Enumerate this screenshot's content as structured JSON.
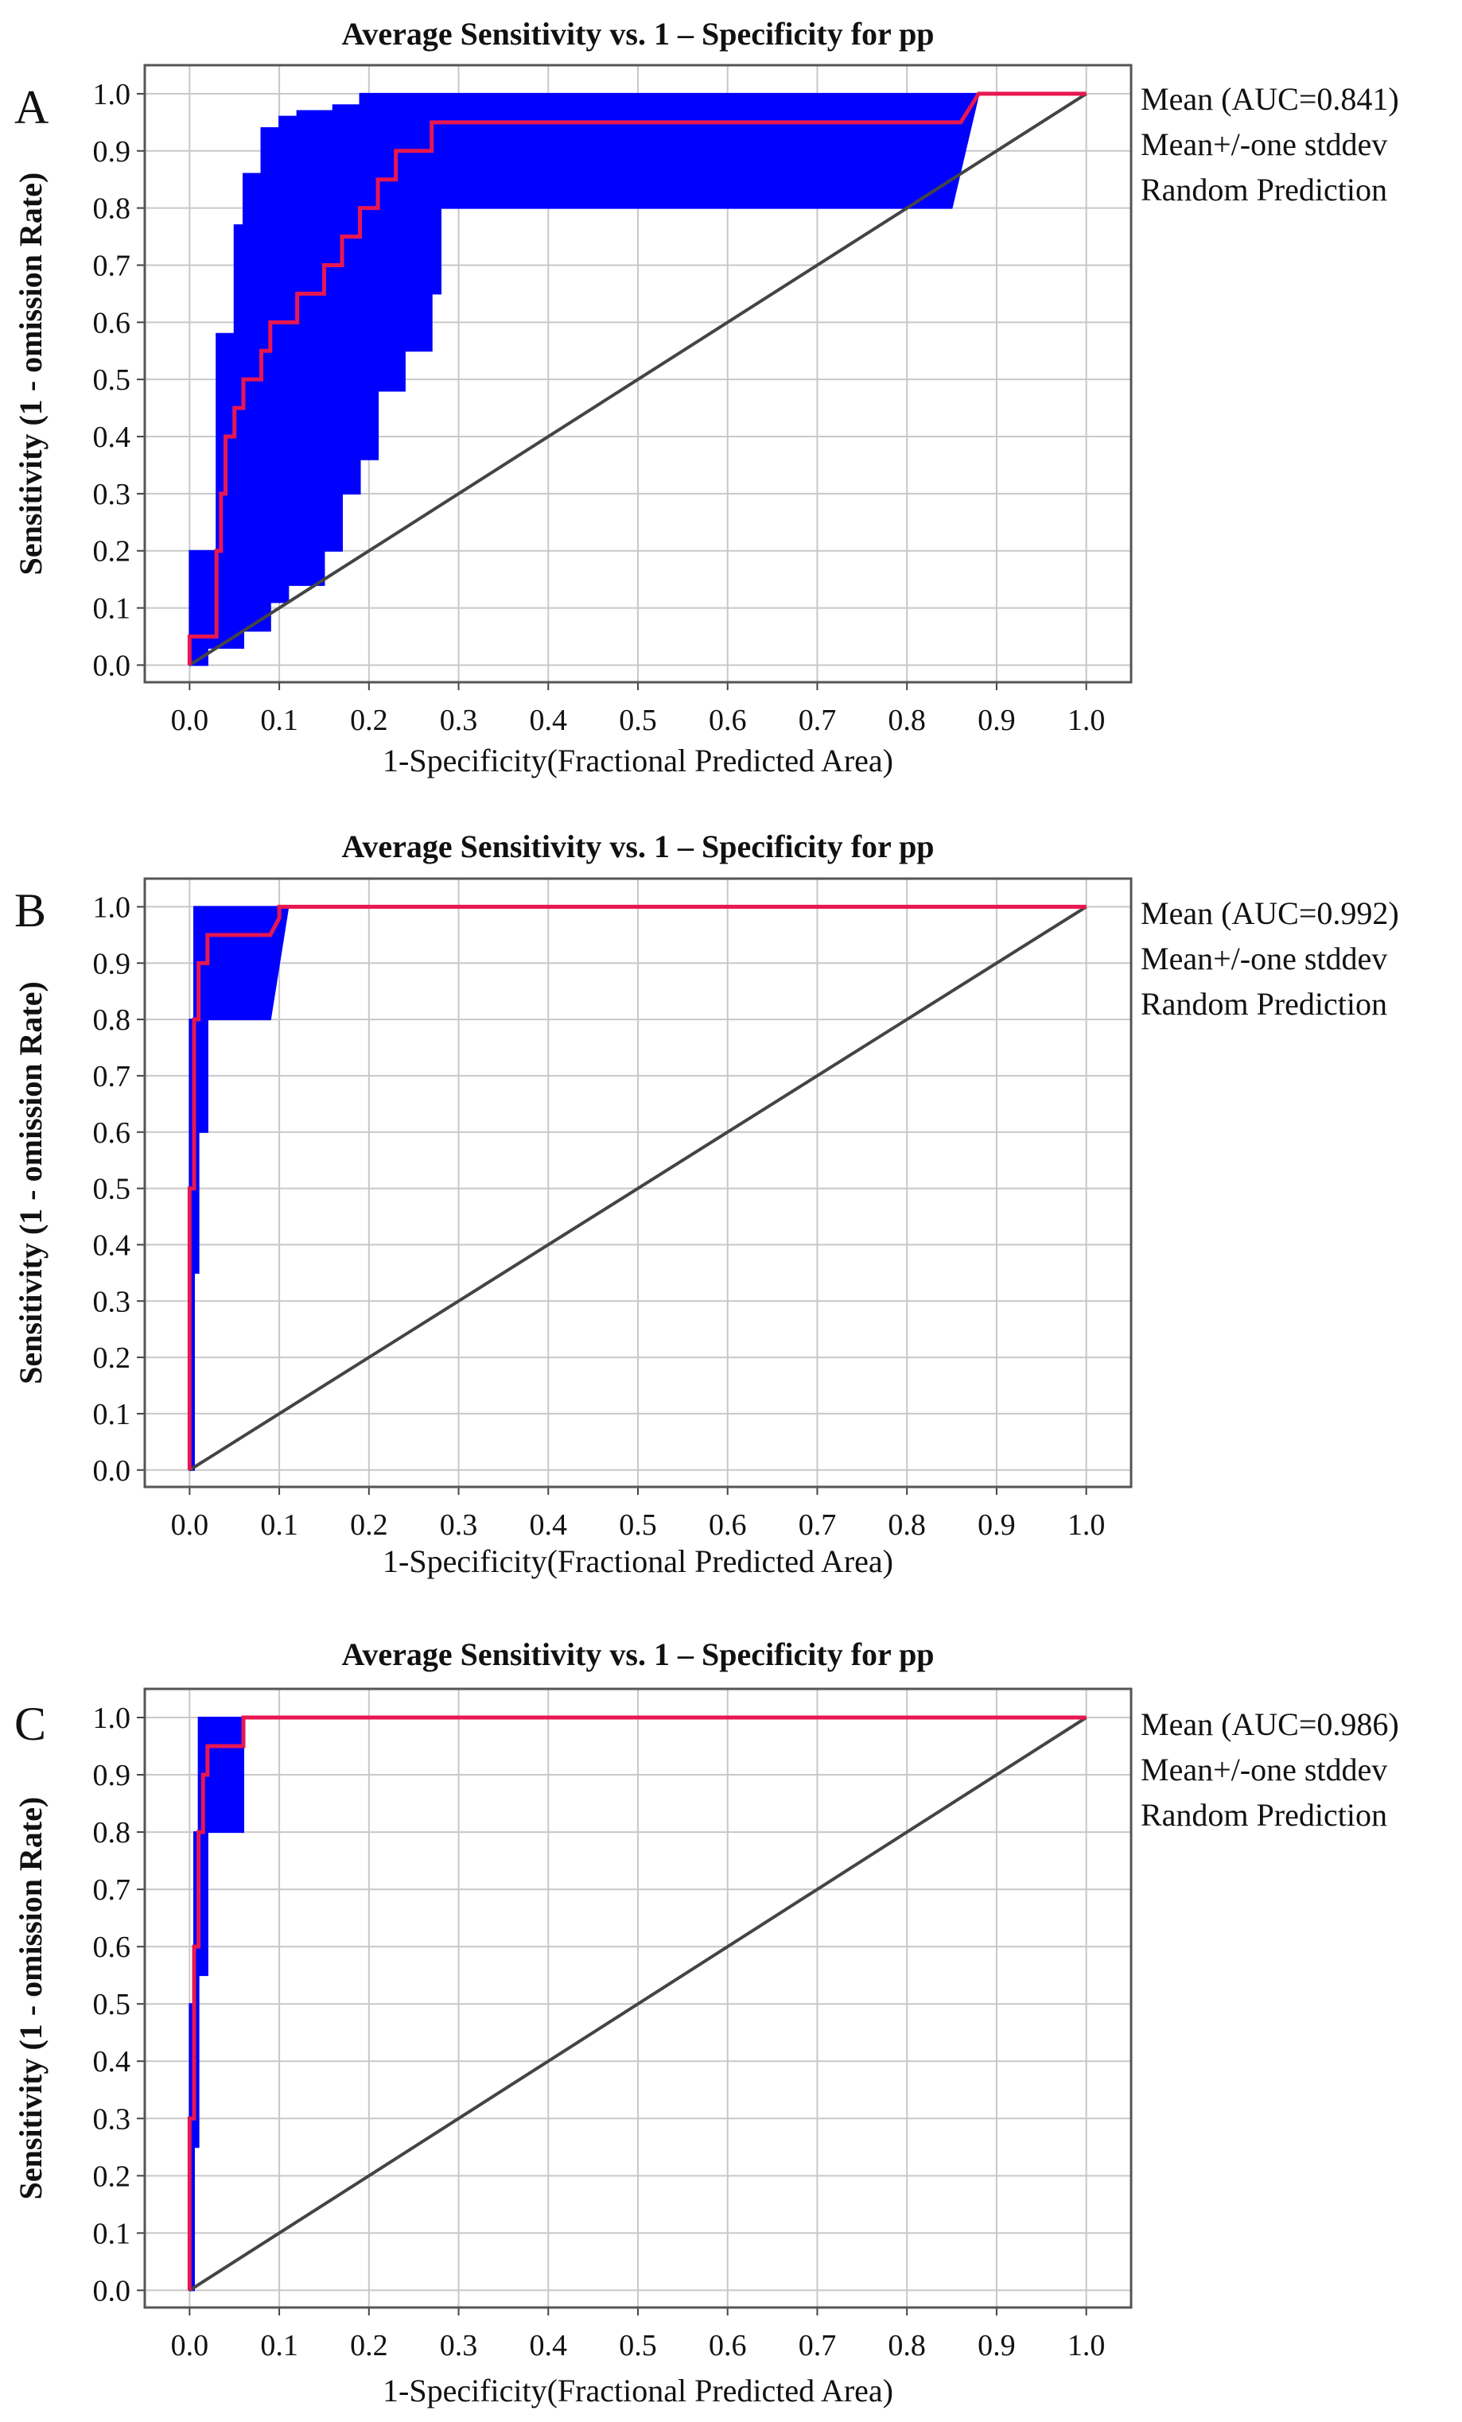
{
  "chart_data": [
    {
      "panel": "A",
      "type": "line",
      "title": "Average Sensitivity vs. 1 – Specificity for pp",
      "xlabel": "1-Specificity(Fractional Predicted Area)",
      "ylabel": "Sensitivity (1 - omission Rate)",
      "xlim": [
        -0.05,
        1.05
      ],
      "ylim": [
        -0.03,
        1.05
      ],
      "xticks": [
        0.0,
        0.1,
        0.2,
        0.3,
        0.4,
        0.5,
        0.6,
        0.7,
        0.8,
        0.9,
        1.0
      ],
      "xtick_labels": [
        "0.0",
        "0.1",
        "0.2",
        "0.3",
        "0.4",
        "0.5",
        "0.6",
        "0.7",
        "0.8",
        "0.9",
        "1.0"
      ],
      "yticks": [
        0.0,
        0.1,
        0.2,
        0.3,
        0.4,
        0.5,
        0.6,
        0.7,
        0.8,
        0.9,
        1.0
      ],
      "ytick_labels": [
        "0.0",
        "0.1",
        "0.2",
        "0.3",
        "0.4",
        "0.5",
        "0.6",
        "0.7",
        "0.8",
        "0.9",
        "1.0"
      ],
      "grid": true,
      "legend_position": "right",
      "legend": [
        "Mean (AUC=0.841)",
        "Mean+/-one stddev",
        "Random Prediction"
      ],
      "colors": {
        "mean": "#e8174f",
        "band": "#0000ff",
        "random": "#444444"
      },
      "series": [
        {
          "name": "Mean (AUC=0.841)",
          "x": [
            0.0,
            0.0,
            0.03,
            0.03,
            0.035,
            0.035,
            0.04,
            0.04,
            0.05,
            0.05,
            0.06,
            0.06,
            0.08,
            0.08,
            0.09,
            0.09,
            0.12,
            0.12,
            0.15,
            0.15,
            0.17,
            0.17,
            0.19,
            0.19,
            0.21,
            0.21,
            0.23,
            0.23,
            0.27,
            0.27,
            0.28,
            0.28,
            0.86,
            0.88,
            1.0
          ],
          "y": [
            0.0,
            0.05,
            0.05,
            0.2,
            0.2,
            0.3,
            0.3,
            0.4,
            0.4,
            0.45,
            0.45,
            0.5,
            0.5,
            0.55,
            0.55,
            0.6,
            0.6,
            0.65,
            0.65,
            0.7,
            0.7,
            0.75,
            0.75,
            0.8,
            0.8,
            0.85,
            0.85,
            0.9,
            0.9,
            0.95,
            0.95,
            0.95,
            0.95,
            1.0,
            1.0
          ]
        },
        {
          "name": "Mean+/-one stddev upper",
          "x": [
            0.0,
            0.0,
            0.03,
            0.03,
            0.05,
            0.05,
            0.06,
            0.06,
            0.08,
            0.08,
            0.1,
            0.1,
            0.12,
            0.12,
            0.16,
            0.16,
            0.19,
            0.19,
            1.0
          ],
          "y": [
            0.0,
            0.2,
            0.2,
            0.58,
            0.58,
            0.77,
            0.77,
            0.86,
            0.86,
            0.94,
            0.94,
            0.96,
            0.96,
            0.97,
            0.97,
            0.98,
            0.98,
            1.0,
            1.0
          ]
        },
        {
          "name": "Mean+/-one stddev lower",
          "x": [
            0.0,
            0.02,
            0.02,
            0.06,
            0.06,
            0.09,
            0.09,
            0.11,
            0.11,
            0.15,
            0.15,
            0.17,
            0.17,
            0.19,
            0.19,
            0.21,
            0.21,
            0.24,
            0.24,
            0.27,
            0.27,
            0.28,
            0.28,
            0.85,
            0.88
          ],
          "y": [
            0.0,
            0.0,
            0.03,
            0.03,
            0.06,
            0.06,
            0.11,
            0.11,
            0.14,
            0.14,
            0.2,
            0.2,
            0.3,
            0.3,
            0.36,
            0.36,
            0.48,
            0.48,
            0.55,
            0.55,
            0.65,
            0.65,
            0.8,
            0.8,
            1.0
          ]
        },
        {
          "name": "Random Prediction",
          "x": [
            0.0,
            1.0
          ],
          "y": [
            0.0,
            1.0
          ]
        }
      ]
    },
    {
      "panel": "B",
      "type": "line",
      "title": "Average Sensitivity vs. 1 – Specificity for pp",
      "xlabel": "1-Specificity(Fractional Predicted Area)",
      "ylabel": "Sensitivity (1 - omission Rate)",
      "xlim": [
        -0.05,
        1.05
      ],
      "ylim": [
        -0.03,
        1.05
      ],
      "xticks": [
        0.0,
        0.1,
        0.2,
        0.3,
        0.4,
        0.5,
        0.6,
        0.7,
        0.8,
        0.9,
        1.0
      ],
      "xtick_labels": [
        "0.0",
        "0.1",
        "0.2",
        "0.3",
        "0.4",
        "0.5",
        "0.6",
        "0.7",
        "0.8",
        "0.9",
        "1.0"
      ],
      "yticks": [
        0.0,
        0.1,
        0.2,
        0.3,
        0.4,
        0.5,
        0.6,
        0.7,
        0.8,
        0.9,
        1.0
      ],
      "ytick_labels": [
        "0.0",
        "0.1",
        "0.2",
        "0.3",
        "0.4",
        "0.5",
        "0.6",
        "0.7",
        "0.8",
        "0.9",
        "1.0"
      ],
      "grid": true,
      "legend_position": "right",
      "legend": [
        "Mean (AUC=0.992)",
        "Mean+/-one stddev",
        "Random Prediction"
      ],
      "colors": {
        "mean": "#e8174f",
        "band": "#0000ff",
        "random": "#444444"
      },
      "series": [
        {
          "name": "Mean (AUC=0.992)",
          "x": [
            0.0,
            0.0,
            0.005,
            0.005,
            0.01,
            0.01,
            0.02,
            0.02,
            0.09,
            0.1,
            0.1,
            1.0
          ],
          "y": [
            0.0,
            0.5,
            0.5,
            0.8,
            0.8,
            0.9,
            0.9,
            0.95,
            0.95,
            0.98,
            1.0,
            1.0
          ]
        },
        {
          "name": "Mean+/-one stddev upper",
          "x": [
            0.0,
            0.0,
            0.005,
            0.005,
            1.0
          ],
          "y": [
            0.0,
            0.8,
            0.8,
            1.0,
            1.0
          ]
        },
        {
          "name": "Mean+/-one stddev lower",
          "x": [
            0.0,
            0.005,
            0.005,
            0.01,
            0.01,
            0.02,
            0.02,
            0.09,
            0.11
          ],
          "y": [
            0.0,
            0.0,
            0.35,
            0.35,
            0.6,
            0.6,
            0.8,
            0.8,
            1.0
          ]
        },
        {
          "name": "Random Prediction",
          "x": [
            0.0,
            1.0
          ],
          "y": [
            0.0,
            1.0
          ]
        }
      ]
    },
    {
      "panel": "C",
      "type": "line",
      "title": "Average Sensitivity vs. 1 – Specificity for pp",
      "xlabel": "1-Specificity(Fractional Predicted Area)",
      "ylabel": "Sensitivity (1 - omission Rate)",
      "xlim": [
        -0.05,
        1.05
      ],
      "ylim": [
        -0.03,
        1.05
      ],
      "xticks": [
        0.0,
        0.1,
        0.2,
        0.3,
        0.4,
        0.5,
        0.6,
        0.7,
        0.8,
        0.9,
        1.0
      ],
      "xtick_labels": [
        "0.0",
        "0.1",
        "0.2",
        "0.3",
        "0.4",
        "0.5",
        "0.6",
        "0.7",
        "0.8",
        "0.9",
        "1.0"
      ],
      "yticks": [
        0.0,
        0.1,
        0.2,
        0.3,
        0.4,
        0.5,
        0.6,
        0.7,
        0.8,
        0.9,
        1.0
      ],
      "ytick_labels": [
        "0.0",
        "0.1",
        "0.2",
        "0.3",
        "0.4",
        "0.5",
        "0.6",
        "0.7",
        "0.8",
        "0.9",
        "1.0"
      ],
      "grid": true,
      "legend_position": "right",
      "legend": [
        "Mean (AUC=0.986)",
        "Mean+/-one stddev",
        "Random Prediction"
      ],
      "colors": {
        "mean": "#e8174f",
        "band": "#0000ff",
        "random": "#444444"
      },
      "series": [
        {
          "name": "Mean (AUC=0.986)",
          "x": [
            0.0,
            0.0,
            0.005,
            0.005,
            0.01,
            0.01,
            0.015,
            0.015,
            0.02,
            0.02,
            0.06,
            0.06,
            1.0
          ],
          "y": [
            0.0,
            0.3,
            0.3,
            0.6,
            0.6,
            0.8,
            0.8,
            0.9,
            0.9,
            0.95,
            0.95,
            1.0,
            1.0
          ]
        },
        {
          "name": "Mean+/-one stddev upper",
          "x": [
            0.0,
            0.0,
            0.005,
            0.005,
            0.01,
            0.01,
            1.0
          ],
          "y": [
            0.0,
            0.5,
            0.5,
            0.8,
            0.8,
            1.0,
            1.0
          ]
        },
        {
          "name": "Mean+/-one stddev lower",
          "x": [
            0.0,
            0.005,
            0.005,
            0.01,
            0.01,
            0.02,
            0.02,
            0.06,
            0.06
          ],
          "y": [
            0.0,
            0.0,
            0.25,
            0.25,
            0.55,
            0.55,
            0.8,
            0.8,
            1.0
          ]
        },
        {
          "name": "Random Prediction",
          "x": [
            0.0,
            1.0
          ],
          "y": [
            0.0,
            1.0
          ]
        }
      ]
    }
  ]
}
